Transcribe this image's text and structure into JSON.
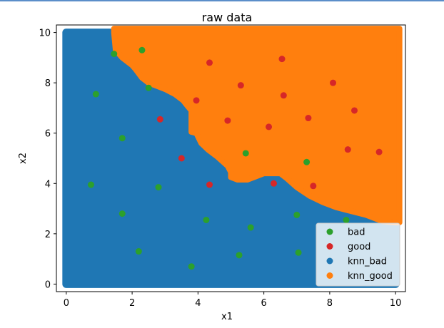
{
  "chart_data": {
    "type": "scatter",
    "title": "raw data",
    "xlabel": "x1",
    "ylabel": "x2",
    "xlim": [
      -0.3,
      10.3
    ],
    "ylim": [
      -0.3,
      10.3
    ],
    "x_ticks": [
      0,
      2,
      4,
      6,
      8,
      10
    ],
    "y_ticks": [
      0,
      2,
      4,
      6,
      8,
      10
    ],
    "x_tick_labels": [
      "0",
      "2",
      "4",
      "6",
      "8",
      "10"
    ],
    "y_tick_labels": [
      "0",
      "2",
      "4",
      "6",
      "8",
      "10"
    ],
    "grid": false,
    "legend_placement": "bottom-right",
    "decision_region": {
      "x_range": [
        0,
        10
      ],
      "y_range": [
        0,
        10
      ],
      "boundary": [
        [
          1.45,
          10.0
        ],
        [
          1.5,
          9.3
        ],
        [
          1.7,
          9.0
        ],
        [
          1.9,
          8.8
        ],
        [
          2.0,
          8.7
        ],
        [
          2.1,
          8.55
        ],
        [
          2.3,
          8.2
        ],
        [
          2.5,
          8.0
        ],
        [
          2.7,
          7.9
        ],
        [
          3.0,
          7.75
        ],
        [
          3.3,
          7.55
        ],
        [
          3.55,
          7.3
        ],
        [
          3.7,
          7.05
        ],
        [
          3.8,
          6.9
        ],
        [
          3.8,
          6.05
        ],
        [
          3.95,
          6.0
        ],
        [
          4.1,
          5.6
        ],
        [
          4.3,
          5.35
        ],
        [
          4.6,
          5.05
        ],
        [
          4.9,
          4.7
        ],
        [
          5.0,
          4.45
        ],
        [
          5.0,
          4.25
        ],
        [
          5.2,
          4.15
        ],
        [
          5.5,
          4.15
        ],
        [
          5.7,
          4.25
        ],
        [
          6.0,
          4.4
        ],
        [
          6.5,
          4.4
        ],
        [
          6.7,
          4.2
        ],
        [
          7.0,
          3.85
        ],
        [
          7.4,
          3.5
        ],
        [
          7.8,
          3.25
        ],
        [
          8.2,
          3.05
        ],
        [
          8.5,
          2.95
        ],
        [
          8.8,
          2.85
        ],
        [
          9.1,
          2.75
        ],
        [
          9.3,
          2.65
        ],
        [
          9.6,
          2.5
        ],
        [
          10.0,
          2.45
        ]
      ]
    },
    "series": [
      {
        "name": "bad",
        "color": "#2ca02c",
        "x": [
          1.45,
          2.3,
          0.9,
          2.5,
          1.7,
          0.75,
          2.8,
          1.7,
          2.2,
          3.8,
          4.25,
          5.25,
          5.6,
          5.45,
          7.0,
          7.05,
          7.3,
          8.5
        ],
        "y": [
          9.15,
          9.3,
          7.55,
          7.8,
          5.8,
          3.95,
          3.85,
          2.8,
          1.3,
          0.7,
          2.55,
          1.15,
          2.25,
          5.2,
          2.75,
          1.25,
          4.85,
          2.55
        ]
      },
      {
        "name": "good",
        "color": "#d62728",
        "x": [
          4.35,
          6.55,
          5.3,
          3.95,
          6.6,
          8.1,
          2.85,
          4.9,
          6.15,
          7.35,
          8.75,
          3.5,
          8.55,
          9.5,
          4.35,
          6.3,
          7.5
        ],
        "y": [
          8.8,
          8.95,
          7.9,
          7.3,
          7.5,
          8.0,
          6.55,
          6.5,
          6.25,
          6.6,
          6.9,
          5.0,
          5.35,
          5.25,
          3.95,
          4.0,
          3.9
        ]
      },
      {
        "name": "knn_bad",
        "color": "#1f77b4"
      },
      {
        "name": "knn_good",
        "color": "#ff7f0e"
      }
    ]
  }
}
